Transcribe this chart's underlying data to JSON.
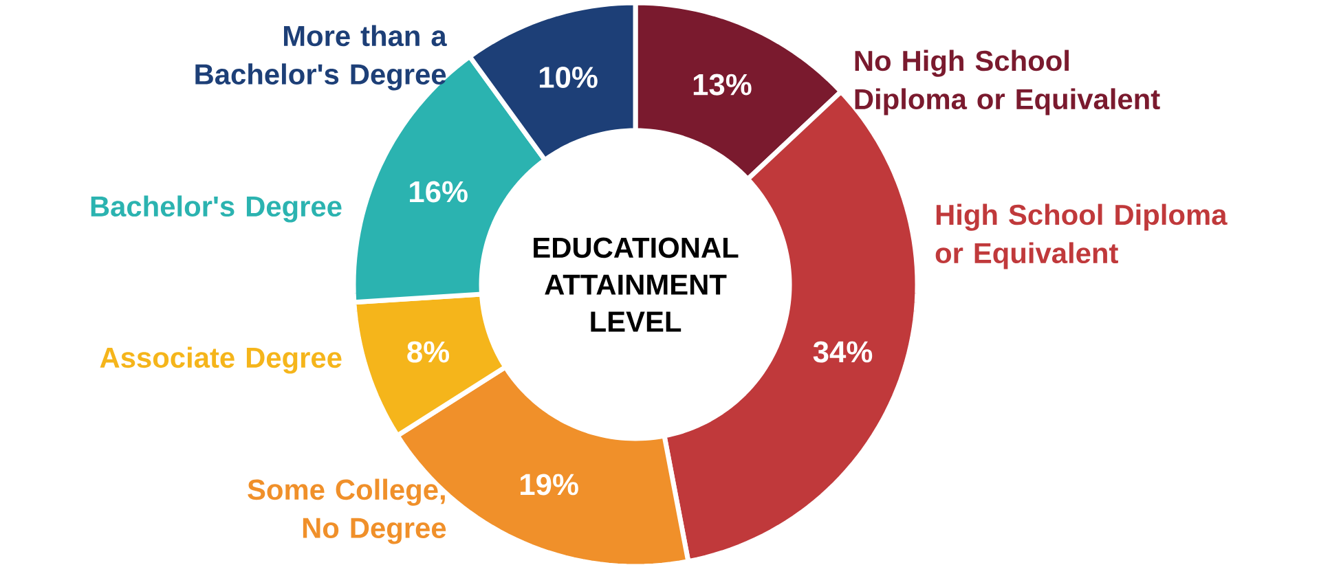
{
  "chart_data": {
    "type": "donut",
    "title": "EDUCATIONAL ATTAINMENT LEVEL",
    "categories": [
      "No High School Diploma or Equivalent",
      "High School Diploma or Equivalent",
      "Some College, No Degree",
      "Associate Degree",
      "Bachelor's Degree",
      "More than a Bachelor's Degree"
    ],
    "values": [
      13,
      34,
      19,
      8,
      16,
      10
    ],
    "colors": [
      "#7a1a2e",
      "#c0393b",
      "#f0902a",
      "#f5b51b",
      "#2bb3b0",
      "#1d3f77"
    ],
    "value_labels": [
      "13%",
      "34%",
      "19%",
      "8%",
      "16%",
      "10%"
    ]
  }
}
